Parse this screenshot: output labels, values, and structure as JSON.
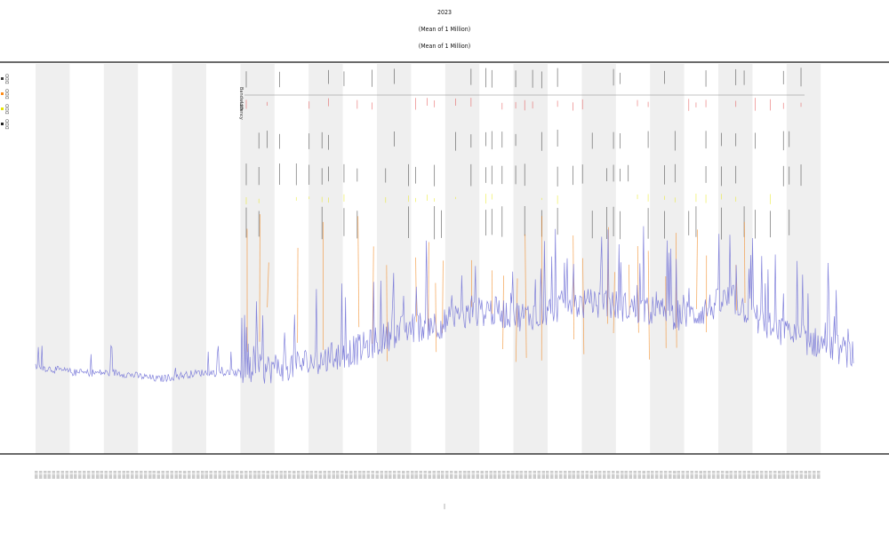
{
  "title": {
    "line1": "2023",
    "line2": "(Mean of 1 Million)",
    "line3": "(Mean of 1 Million)"
  },
  "legend": [
    {
      "label": "DDD",
      "color": "#3b3b3b"
    },
    {
      "label": "DDD",
      "color": "#ff8c1a"
    },
    {
      "label": "DDD",
      "color": "#e6e600"
    },
    {
      "label": "DDD",
      "color": "#222222"
    }
  ],
  "xaxis_label": "|",
  "row_labels": [
    "Bandwidth",
    "Latency"
  ],
  "colors": {
    "baseline": "#6f6fd6",
    "orange": "#f28c28",
    "yellow": "#e6e600",
    "red": "#e03c3c",
    "band": "#efefef",
    "axis": "#111111"
  },
  "chart_data": {
    "type": "line",
    "title": "2023",
    "subtitle": "(Mean of 1 Million)",
    "xlabel": "|",
    "ylabel": "",
    "grid": false,
    "legend_position": "top-left",
    "num_bands": 24,
    "baseline_series": [
      {
        "x": 0.0,
        "y": 0.14
      },
      {
        "x": 0.05,
        "y": 0.13
      },
      {
        "x": 0.1,
        "y": 0.13
      },
      {
        "x": 0.15,
        "y": 0.12
      },
      {
        "x": 0.2,
        "y": 0.13
      },
      {
        "x": 0.25,
        "y": 0.13
      },
      {
        "x": 0.3,
        "y": 0.14
      },
      {
        "x": 0.35,
        "y": 0.15
      },
      {
        "x": 0.4,
        "y": 0.17
      },
      {
        "x": 0.45,
        "y": 0.2
      },
      {
        "x": 0.5,
        "y": 0.21
      },
      {
        "x": 0.55,
        "y": 0.23
      },
      {
        "x": 0.6,
        "y": 0.22
      },
      {
        "x": 0.65,
        "y": 0.24
      },
      {
        "x": 0.7,
        "y": 0.24
      },
      {
        "x": 0.75,
        "y": 0.23
      },
      {
        "x": 0.8,
        "y": 0.22
      },
      {
        "x": 0.85,
        "y": 0.25
      },
      {
        "x": 0.9,
        "y": 0.2
      },
      {
        "x": 0.95,
        "y": 0.18
      },
      {
        "x": 1.0,
        "y": 0.16
      }
    ]
  }
}
